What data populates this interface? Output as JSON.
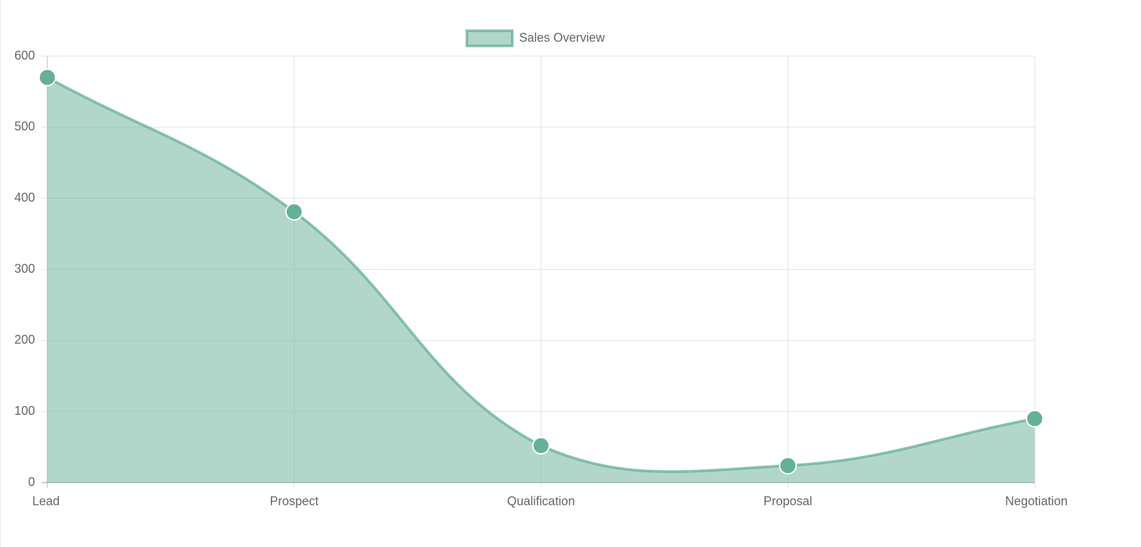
{
  "chart_data": {
    "type": "line",
    "categories": [
      "Lead",
      "Prospect",
      "Qualification",
      "Proposal",
      "Negotiation"
    ],
    "series": [
      {
        "name": "Sales Overview",
        "color": "#66b096",
        "values": [
          570,
          381,
          52,
          24,
          90
        ]
      }
    ],
    "ylim": [
      0,
      600
    ],
    "yticks": [
      0,
      100,
      200,
      300,
      400,
      500,
      600
    ],
    "grid": true,
    "legend": "top",
    "fill": true
  }
}
